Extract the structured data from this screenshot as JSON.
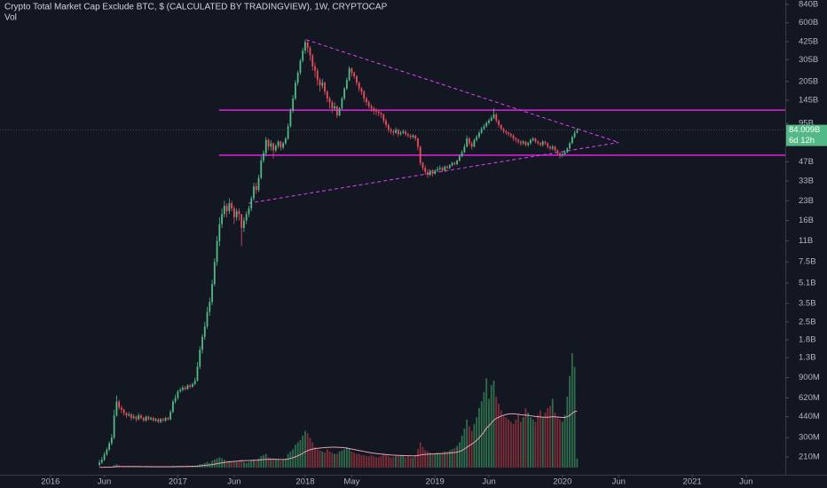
{
  "chart_data": {
    "type": "candlestick",
    "title": "Crypto Total Market Cap Exclude BTC, $ (CALCULATED BY TRADINGVIEW), 1W, CRYPTOCAP",
    "volume_title": "Vol",
    "log_scale": true,
    "up_color": "#53b987",
    "down_color": "#eb4d5c",
    "close": [
      0.19,
      0.2,
      0.22,
      0.24,
      0.27,
      0.3,
      0.45,
      0.58,
      0.52,
      0.5,
      0.47,
      0.45,
      0.46,
      0.43,
      0.44,
      0.42,
      0.45,
      0.43,
      0.41,
      0.44,
      0.42,
      0.43,
      0.41,
      0.42,
      0.4,
      0.42,
      0.41,
      0.43,
      0.42,
      0.48,
      0.58,
      0.62,
      0.7,
      0.72,
      0.75,
      0.73,
      0.78,
      0.76,
      0.8,
      0.85,
      1.1,
      1.5,
      1.9,
      2.3,
      3,
      3.6,
      5,
      7.5,
      11,
      15,
      18,
      21,
      19,
      22,
      20,
      17,
      19,
      18,
      14,
      16,
      18,
      20,
      24,
      30,
      28,
      35,
      48,
      55,
      70,
      62,
      66,
      58,
      63,
      68,
      61,
      66,
      72,
      90,
      120,
      150,
      200,
      240,
      300,
      360,
      420,
      380,
      330,
      270,
      250,
      210,
      190,
      200,
      170,
      150,
      140,
      125,
      130,
      110,
      125,
      150,
      180,
      210,
      260,
      240,
      225,
      200,
      180,
      170,
      150,
      140,
      130,
      125,
      120,
      118,
      115,
      112,
      100,
      92,
      85,
      82,
      80,
      84,
      78,
      80,
      82,
      78,
      76,
      74,
      76,
      72,
      62,
      46,
      42,
      39,
      37,
      40,
      38,
      40,
      41,
      42,
      40,
      43,
      42,
      44,
      46,
      45,
      48,
      52,
      56,
      62,
      72,
      66,
      62,
      70,
      74,
      80,
      86,
      90,
      96,
      100,
      105,
      112,
      100,
      92,
      86,
      82,
      80,
      78,
      76,
      72,
      70,
      68,
      66,
      68,
      64,
      66,
      70,
      72,
      68,
      66,
      64,
      68,
      66,
      62,
      60,
      62,
      58,
      55,
      53,
      54,
      56,
      60,
      66,
      74,
      80,
      84.009
    ],
    "high": [
      0.2,
      0.21,
      0.23,
      0.25,
      0.28,
      0.32,
      0.5,
      0.65,
      0.6,
      0.54,
      0.51,
      0.48,
      0.48,
      0.47,
      0.46,
      0.45,
      0.47,
      0.46,
      0.44,
      0.45,
      0.45,
      0.44,
      0.44,
      0.43,
      0.43,
      0.43,
      0.43,
      0.44,
      0.44,
      0.5,
      0.6,
      0.66,
      0.72,
      0.75,
      0.78,
      0.77,
      0.8,
      0.8,
      0.82,
      0.9,
      1.2,
      1.6,
      2,
      2.5,
      3.3,
      3.9,
      5.4,
      8,
      12,
      17,
      20,
      23,
      22,
      24,
      23,
      21,
      20,
      20,
      18,
      17,
      19,
      21,
      25,
      32,
      32,
      37,
      52,
      58,
      74,
      72,
      70,
      67,
      65,
      70,
      69,
      68,
      74,
      95,
      125,
      160,
      210,
      250,
      310,
      380,
      440,
      430,
      390,
      340,
      290,
      260,
      220,
      215,
      205,
      175,
      155,
      145,
      140,
      132,
      128,
      155,
      185,
      220,
      270,
      265,
      245,
      230,
      205,
      185,
      175,
      155,
      145,
      135,
      130,
      125,
      122,
      118,
      114,
      104,
      95,
      88,
      85,
      88,
      86,
      83,
      85,
      84,
      80,
      78,
      78,
      77,
      73,
      63,
      47,
      44,
      41,
      41,
      41,
      41,
      43,
      44,
      43,
      44,
      44,
      45,
      47,
      47,
      49,
      54,
      58,
      65,
      76,
      74,
      68,
      72,
      77,
      83,
      89,
      94,
      99,
      104,
      110,
      125,
      115,
      102,
      94,
      88,
      84,
      82,
      80,
      78,
      74,
      72,
      70,
      70,
      69,
      68,
      72,
      74,
      73,
      70,
      68,
      70,
      69,
      67,
      63,
      64,
      63,
      59,
      56,
      56,
      58,
      61,
      68,
      76,
      83,
      87
    ],
    "low": [
      0.18,
      0.185,
      0.195,
      0.215,
      0.235,
      0.26,
      0.29,
      0.44,
      0.5,
      0.47,
      0.45,
      0.43,
      0.44,
      0.41,
      0.42,
      0.4,
      0.41,
      0.42,
      0.4,
      0.4,
      0.41,
      0.41,
      0.4,
      0.4,
      0.39,
      0.39,
      0.4,
      0.4,
      0.41,
      0.41,
      0.47,
      0.56,
      0.6,
      0.68,
      0.7,
      0.71,
      0.72,
      0.74,
      0.75,
      0.78,
      0.84,
      1.05,
      1.4,
      1.8,
      2.2,
      2.8,
      3.4,
      4.8,
      7,
      10,
      14,
      17,
      17,
      18,
      19,
      15,
      16,
      16,
      10,
      13,
      15,
      17,
      19,
      23,
      26,
      27,
      34,
      46,
      52,
      58,
      58,
      50,
      56,
      60,
      58,
      59,
      64,
      70,
      88,
      115,
      145,
      190,
      230,
      290,
      340,
      350,
      300,
      250,
      220,
      190,
      170,
      180,
      160,
      140,
      125,
      115,
      120,
      105,
      108,
      122,
      145,
      175,
      205,
      225,
      215,
      190,
      170,
      160,
      140,
      132,
      125,
      118,
      112,
      110,
      108,
      105,
      95,
      88,
      80,
      78,
      76,
      78,
      74,
      76,
      78,
      75,
      73,
      71,
      72,
      69,
      58,
      44,
      40,
      37,
      35,
      36,
      36,
      37,
      39,
      40,
      39,
      39,
      41,
      41,
      43,
      44,
      44,
      47,
      51,
      55,
      61,
      63,
      59,
      61,
      68,
      72,
      78,
      84,
      88,
      93,
      98,
      103,
      96,
      88,
      83,
      79,
      77,
      75,
      73,
      69,
      67,
      65,
      63,
      64,
      62,
      62,
      64,
      68,
      66,
      64,
      62,
      62,
      64,
      60,
      58,
      58,
      56,
      53,
      50,
      51,
      53,
      55,
      59,
      65,
      72,
      79
    ],
    "ylim": [
      0.152,
      911
    ],
    "yticks": [
      {
        "value": 840,
        "label": "840B"
      },
      {
        "value": 600,
        "label": "600B"
      },
      {
        "value": 425,
        "label": "425B"
      },
      {
        "value": 305,
        "label": "305B"
      },
      {
        "value": 205,
        "label": "205B"
      },
      {
        "value": 145,
        "label": "145B"
      },
      {
        "value": 95,
        "label": "95B"
      },
      {
        "value": 47,
        "label": "47B"
      },
      {
        "value": 33,
        "label": "33B"
      },
      {
        "value": 23,
        "label": "23B"
      },
      {
        "value": 16,
        "label": "16B"
      },
      {
        "value": 11,
        "label": "11B"
      },
      {
        "value": 7.5,
        "label": "7.5B"
      },
      {
        "value": 5.1,
        "label": "5.1B"
      },
      {
        "value": 3.5,
        "label": "3.5B"
      },
      {
        "value": 2.5,
        "label": "2.5B"
      },
      {
        "value": 1.8,
        "label": "1.8B"
      },
      {
        "value": 1.3,
        "label": "1.3B"
      },
      {
        "value": 0.9,
        "label": "900M"
      },
      {
        "value": 0.62,
        "label": "620M"
      },
      {
        "value": 0.44,
        "label": "440M"
      },
      {
        "value": 0.3,
        "label": "300M"
      },
      {
        "value": 0.21,
        "label": "210M"
      }
    ],
    "xlim": [
      -40.6,
      280
    ],
    "xticks": [
      {
        "value": -20,
        "label": "2016"
      },
      {
        "value": 2,
        "label": "Jun"
      },
      {
        "value": 32,
        "label": "2017"
      },
      {
        "value": 55,
        "label": "Jun"
      },
      {
        "value": 84,
        "label": "2018"
      },
      {
        "value": 103,
        "label": "May"
      },
      {
        "value": 137,
        "label": "2019"
      },
      {
        "value": 159,
        "label": "Jun"
      },
      {
        "value": 189,
        "label": "2020"
      },
      {
        "value": 212,
        "label": "Jun"
      },
      {
        "value": 242,
        "label": "2021"
      },
      {
        "value": 264,
        "label": "Jun"
      }
    ],
    "last_value_label": "84.009B",
    "countdown": "6d 12h",
    "levels": {
      "color": "#e020e0",
      "values": [
        121,
        53
      ]
    },
    "trendlines": {
      "color": "#e040fb",
      "lines": [
        {
          "x": [
            84.4,
            212
          ],
          "y": [
            440,
            67
          ]
        },
        {
          "x": [
            60.9,
            212
          ],
          "y": [
            22,
            67
          ]
        }
      ]
    },
    "volume": {
      "up_color": "#2f6e4c",
      "down_color": "#7e2e38",
      "ma_color": "#e8a0b8",
      "ylim": [
        0,
        100
      ],
      "values": [
        0.3,
        0.3,
        0.4,
        0.5,
        0.6,
        0.8,
        2,
        3,
        2,
        1,
        0.9,
        0.8,
        0.9,
        0.8,
        0.7,
        0.8,
        0.7,
        0.8,
        0.7,
        0.7,
        0.8,
        0.7,
        0.6,
        0.7,
        0.7,
        0.6,
        0.7,
        0.7,
        0.6,
        1,
        1.5,
        1.2,
        1.5,
        1.3,
        1.2,
        1.4,
        1.2,
        1.3,
        1.4,
        1.6,
        2,
        3,
        3,
        4,
        5,
        4,
        6,
        7,
        8,
        9,
        8,
        7,
        6,
        6,
        5,
        5,
        5,
        6,
        7,
        5,
        4,
        5,
        6,
        7,
        6,
        8,
        10,
        11,
        12,
        9,
        8,
        8,
        7,
        7,
        6,
        7,
        8,
        12,
        14,
        16,
        20,
        22,
        24,
        28,
        32,
        30,
        26,
        22,
        18,
        16,
        15,
        14,
        13,
        16,
        14,
        13,
        12,
        12,
        14,
        15,
        16,
        18,
        17,
        14,
        13,
        12,
        12,
        11,
        11,
        10,
        10,
        11,
        10,
        9,
        9,
        10,
        12,
        11,
        10,
        9,
        9,
        10,
        10,
        11,
        10,
        9,
        10,
        9,
        9,
        10,
        16,
        22,
        18,
        15,
        14,
        13,
        12,
        12,
        13,
        12,
        13,
        14,
        14,
        15,
        16,
        17,
        19,
        22,
        28,
        34,
        42,
        36,
        32,
        38,
        44,
        52,
        58,
        66,
        78,
        60,
        72,
        76,
        62,
        56,
        50,
        46,
        44,
        42,
        40,
        38,
        42,
        46,
        40,
        44,
        52,
        48,
        44,
        42,
        40,
        46,
        50,
        44,
        48,
        52,
        54,
        60,
        48,
        44,
        42,
        40,
        46,
        62,
        80,
        100,
        88,
        8
      ],
      "ma": [
        0.3,
        0.3,
        0.3,
        0.4,
        0.4,
        0.5,
        0.7,
        0.9,
        1,
        1,
        1,
        1,
        1,
        1,
        1,
        1,
        1,
        0.9,
        0.9,
        0.9,
        0.9,
        0.8,
        0.8,
        0.8,
        0.8,
        0.8,
        0.8,
        0.8,
        0.8,
        0.8,
        0.8,
        0.9,
        0.9,
        1,
        1,
        1,
        1.1,
        1.1,
        1.2,
        1.2,
        1.3,
        1.5,
        1.7,
        1.9,
        2.1,
        2.3,
        2.6,
        3,
        3.4,
        3.8,
        4.2,
        4.5,
        4.8,
        5,
        5.2,
        5.4,
        5.6,
        5.8,
        6,
        6.1,
        6.1,
        6.2,
        6.3,
        6.4,
        6.5,
        6.6,
        6.8,
        7,
        7.2,
        7.3,
        7.3,
        7.3,
        7.3,
        7.2,
        7.1,
        7.1,
        7.2,
        7.5,
        8,
        8.6,
        9.4,
        10.3,
        11.3,
        12.5,
        13.8,
        14.8,
        15.6,
        16.2,
        16.6,
        16.9,
        17.1,
        17.3,
        17.4,
        17.6,
        17.7,
        17.8,
        17.8,
        17.7,
        17.6,
        17.5,
        17.3,
        17,
        16.6,
        16.2,
        15.8,
        15.3,
        14.9,
        14.5,
        14.1,
        13.7,
        13.3,
        12.9,
        12.6,
        12.3,
        12,
        11.8,
        11.6,
        11.4,
        11.2,
        11,
        10.9,
        10.8,
        10.7,
        10.6,
        10.5,
        10.5,
        10.4,
        10.4,
        10.3,
        10.3,
        10.6,
        11,
        11.3,
        11.5,
        11.7,
        11.8,
        11.9,
        12,
        12.1,
        12.2,
        12.3,
        12.4,
        12.5,
        12.7,
        12.9,
        13.2,
        13.6,
        14.1,
        15,
        16.2,
        17.8,
        19.2,
        20.5,
        22,
        23.8,
        26,
        28.4,
        31.2,
        34.5,
        36.5,
        39,
        41.5,
        43,
        44,
        45,
        45.8,
        46.4,
        46.8,
        47,
        47,
        46.8,
        46.6,
        46.2,
        46,
        45.8,
        45.6,
        45.3,
        45,
        44.7,
        44.5,
        44.3,
        44.1,
        44,
        44,
        44.2,
        44.5,
        44.4,
        44.2,
        44,
        43.8,
        43.8,
        44.4,
        45.6,
        47.4,
        49,
        49.2
      ]
    }
  }
}
